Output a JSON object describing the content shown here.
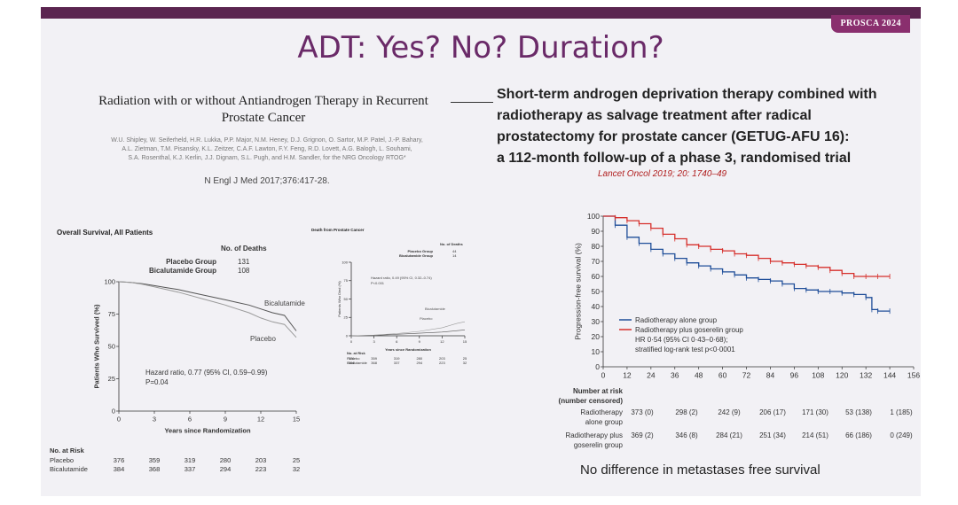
{
  "header": {
    "badge": "PROSCA 2024",
    "title": "ADT: Yes? No? Duration?"
  },
  "left_study": {
    "title_line1": "Radiation with or without Antiandrogen Therapy in Recurrent",
    "title_line2": "Prostate Cancer",
    "authors": [
      "W.U. Shipley, W. Seiferheld, H.R. Lukka, P.P. Major, N.M. Heney, D.J. Grignon, O. Sartor, M.P. Patel, J.-P. Bahary,",
      "A.L. Zietman, T.M. Pisansky, K.L. Zeitzer, C.A.F. Lawton, F.Y. Feng, R.D. Lovett, A.G. Balogh, L. Souhami,",
      "S.A. Rosenthal, K.J. Kerlin, J.J. Dignam, S.L. Pugh, and H.M. Sandler, for the NRG Oncology RTOG*"
    ],
    "citation": "N Engl J Med 2017;376:417-28."
  },
  "right_study": {
    "title_lines": [
      "Short-term androgen deprivation therapy combined with",
      "radiotherapy as salvage treatment after radical",
      "prostatectomy for prostate cancer (GETUG-AFU 16):",
      "a 112-month follow-up of a phase 3, randomised trial"
    ],
    "citation": "Lancet Oncol 2019; 20: 1740–49",
    "bottom_note": "No difference in metastases free survival"
  },
  "chart_data": [
    {
      "type": "line",
      "title": "Overall Survival, All Patients",
      "xlabel": "Years since Randomization",
      "ylabel": "Patients Who Survived (%)",
      "xticks": [
        0,
        3,
        6,
        9,
        12,
        15
      ],
      "yticks": [
        0,
        25,
        50,
        75,
        100
      ],
      "xlim": [
        0,
        15
      ],
      "ylim": [
        0,
        100
      ],
      "deaths_header": "No. of Deaths",
      "deaths": [
        {
          "group": "Placebo Group",
          "value": "131"
        },
        {
          "group": "Bicalutamide Group",
          "value": "108"
        }
      ],
      "annotation_lines": [
        "Hazard ratio, 0.77 (95% CI, 0.59–0.99)",
        "P=0.04"
      ],
      "series": [
        {
          "name": "Bicalutamide",
          "color": "#555555",
          "x": [
            0,
            1,
            2,
            3,
            4,
            5,
            6,
            7,
            8,
            9,
            10,
            11,
            12,
            13,
            14,
            15
          ],
          "y": [
            100,
            99.5,
            98.5,
            97,
            95.5,
            94,
            92,
            90,
            88,
            86,
            84,
            82,
            79,
            76,
            74,
            62
          ]
        },
        {
          "name": "Placebo",
          "color": "#9a9a9a",
          "x": [
            0,
            1,
            2,
            3,
            4,
            5,
            6,
            7,
            8,
            9,
            10,
            11,
            12,
            13,
            14,
            15
          ],
          "y": [
            100,
            99.5,
            98,
            96,
            94,
            92,
            89.5,
            87,
            84.5,
            82,
            79,
            76,
            72,
            69,
            67,
            57
          ]
        }
      ],
      "risk_header": "No. at Risk",
      "risk_rows": [
        {
          "label": "Placebo",
          "values": [
            "376",
            "359",
            "319",
            "280",
            "203",
            "25"
          ]
        },
        {
          "label": "Bicalutamide",
          "values": [
            "384",
            "368",
            "337",
            "294",
            "223",
            "32"
          ]
        }
      ]
    },
    {
      "type": "line",
      "title": "Death from Prostate Cancer",
      "xlabel": "Years since Randomization",
      "ylabel": "Patients Who Died (%)",
      "xticks": [
        0,
        3,
        6,
        9,
        12,
        15
      ],
      "yticks": [
        0,
        25,
        50,
        75,
        100
      ],
      "xlim": [
        0,
        15
      ],
      "ylim": [
        0,
        100
      ],
      "deaths_header": "No. of Deaths",
      "deaths": [
        {
          "group": "Placebo Group",
          "value": "44"
        },
        {
          "group": "Bicalutamide Group",
          "value": "14"
        }
      ],
      "annotation_lines": [
        "Hazard ratio, 0.49 (95% CI, 0.32–0.74)",
        "P<0.001"
      ],
      "series": [
        {
          "name": "Bicalutamide",
          "color": "#555555",
          "x": [
            0,
            3,
            6,
            9,
            12,
            14,
            15
          ],
          "y": [
            0,
            0.5,
            2,
            3.5,
            5,
            7,
            8
          ]
        },
        {
          "name": "Placebo",
          "color": "#9a9a9a",
          "x": [
            0,
            3,
            6,
            9,
            12,
            14,
            15
          ],
          "y": [
            0,
            1,
            3,
            6,
            11,
            17,
            19
          ]
        }
      ],
      "risk_header": "No. at Risk",
      "risk_rows": [
        {
          "label": "Placebo",
          "values": [
            "376",
            "359",
            "319",
            "280",
            "203",
            "25"
          ]
        },
        {
          "label": "Bicalutamide",
          "values": [
            "384",
            "368",
            "337",
            "294",
            "223",
            "32"
          ]
        }
      ]
    },
    {
      "type": "line",
      "title": "",
      "xlabel": "",
      "ylabel": "Progression-free survival (%)",
      "xticks": [
        0,
        12,
        24,
        36,
        48,
        60,
        72,
        84,
        96,
        108,
        120,
        132,
        144,
        156
      ],
      "yticks": [
        0,
        10,
        20,
        30,
        40,
        50,
        60,
        70,
        80,
        90,
        100
      ],
      "xlim": [
        0,
        156
      ],
      "ylim": [
        0,
        100
      ],
      "legend": [
        {
          "label": "Radiotherapy alone group",
          "color": "#1f4e99"
        },
        {
          "label": "Radiotherapy plus goserelin group",
          "color": "#d6302c"
        }
      ],
      "annotation_lines": [
        "HR 0·54 (95% CI 0·43–0·68);",
        "stratified log-rank test p<0·0001"
      ],
      "series": [
        {
          "name": "Radiotherapy alone group",
          "color": "#1f4e99",
          "x": [
            0,
            6,
            12,
            18,
            24,
            30,
            36,
            42,
            48,
            54,
            60,
            66,
            72,
            78,
            84,
            90,
            96,
            102,
            108,
            114,
            120,
            126,
            132,
            135,
            138,
            144
          ],
          "y": [
            100,
            94,
            86,
            82,
            78,
            75,
            72,
            69,
            67,
            65,
            63,
            61,
            59,
            58,
            57,
            55,
            52,
            51,
            50,
            50,
            49,
            48,
            46,
            38,
            37,
            37
          ]
        },
        {
          "name": "Radiotherapy plus goserelin group",
          "color": "#d6302c",
          "x": [
            0,
            6,
            12,
            18,
            24,
            30,
            36,
            42,
            48,
            54,
            60,
            66,
            72,
            78,
            84,
            90,
            96,
            102,
            108,
            114,
            120,
            126,
            132,
            138,
            144
          ],
          "y": [
            100,
            99,
            97,
            95,
            92,
            88,
            85,
            81,
            80,
            78,
            77,
            75,
            74,
            72,
            70,
            69,
            68,
            67,
            66,
            64,
            62,
            60,
            60,
            60,
            60
          ]
        }
      ],
      "risk_header": [
        "Number at risk",
        "(number censored)"
      ],
      "risk_rows": [
        {
          "label": [
            "Radiotherapy",
            "alone group"
          ],
          "values": [
            "373 (0)",
            "298 (2)",
            "242 (9)",
            "206 (17)",
            "171 (30)",
            "53 (138)",
            "1 (185)"
          ]
        },
        {
          "label": [
            "Radiotherapy plus",
            "goserelin group"
          ],
          "values": [
            "369 (2)",
            "346 (8)",
            "284 (21)",
            "251 (34)",
            "214 (51)",
            "66 (186)",
            "0 (249)"
          ]
        }
      ]
    }
  ]
}
